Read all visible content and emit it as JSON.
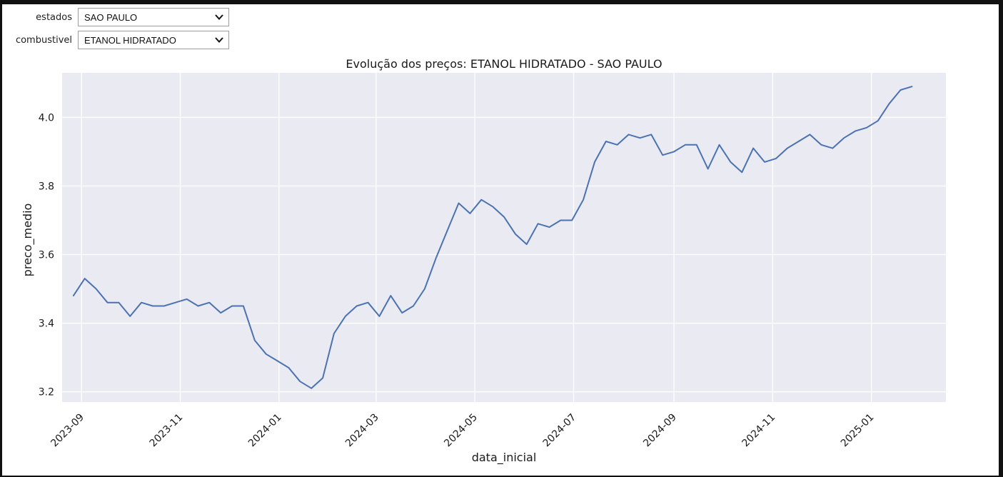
{
  "controls": {
    "estados": {
      "label": "estados",
      "value": "SAO PAULO"
    },
    "combustivel": {
      "label": "combustivel",
      "value": "ETANOL HIDRATADO"
    }
  },
  "colors": {
    "line": "#4c72b0",
    "plot_bg": "#eaeaf2",
    "grid": "#ffffff"
  },
  "chart_data": {
    "type": "line",
    "title": "Evolução dos preços: ETANOL HIDRATADO - SAO PAULO",
    "xlabel": "data_inicial",
    "ylabel": "preco_medio",
    "ylim": [
      3.17,
      4.13
    ],
    "xlim": [
      "2023-08-20",
      "2025-02-16"
    ],
    "grid": true,
    "x_ticks": [
      "2023-09-01",
      "2023-11-01",
      "2024-01-01",
      "2024-03-01",
      "2024-05-01",
      "2024-07-01",
      "2024-09-01",
      "2024-11-01",
      "2025-01-01"
    ],
    "x_tick_labels": [
      "2023-09",
      "2023-11",
      "2024-01",
      "2024-03",
      "2024-05",
      "2024-07",
      "2024-09",
      "2024-11",
      "2025-01"
    ],
    "y_ticks": [
      3.2,
      3.4,
      3.6,
      3.8,
      4.0
    ],
    "y_tick_labels": [
      "3.2",
      "3.4",
      "3.6",
      "3.8",
      "4.0"
    ],
    "x": [
      "2023-08-27",
      "2023-09-03",
      "2023-09-10",
      "2023-09-17",
      "2023-09-24",
      "2023-10-01",
      "2023-10-08",
      "2023-10-15",
      "2023-10-22",
      "2023-10-29",
      "2023-11-05",
      "2023-11-12",
      "2023-11-19",
      "2023-11-26",
      "2023-12-03",
      "2023-12-10",
      "2023-12-17",
      "2023-12-24",
      "2023-12-31",
      "2024-01-07",
      "2024-01-14",
      "2024-01-21",
      "2024-01-28",
      "2024-02-04",
      "2024-02-11",
      "2024-02-18",
      "2024-02-25",
      "2024-03-03",
      "2024-03-10",
      "2024-03-17",
      "2024-03-24",
      "2024-03-31",
      "2024-04-07",
      "2024-04-14",
      "2024-04-21",
      "2024-04-28",
      "2024-05-05",
      "2024-05-12",
      "2024-05-19",
      "2024-05-26",
      "2024-06-02",
      "2024-06-09",
      "2024-06-16",
      "2024-06-23",
      "2024-06-30",
      "2024-07-07",
      "2024-07-14",
      "2024-07-21",
      "2024-07-28",
      "2024-08-04",
      "2024-08-11",
      "2024-08-18",
      "2024-08-25",
      "2024-09-01",
      "2024-09-08",
      "2024-09-15",
      "2024-09-22",
      "2024-09-29",
      "2024-10-06",
      "2024-10-13",
      "2024-10-20",
      "2024-10-27",
      "2024-11-03",
      "2024-11-10",
      "2024-11-17",
      "2024-11-24",
      "2024-12-01",
      "2024-12-08",
      "2024-12-15",
      "2024-12-22",
      "2024-12-29",
      "2025-01-05",
      "2025-01-12",
      "2025-01-19",
      "2025-01-26"
    ],
    "series": [
      {
        "values": [
          3.48,
          3.53,
          3.5,
          3.46,
          3.46,
          3.42,
          3.46,
          3.45,
          3.45,
          3.46,
          3.47,
          3.45,
          3.46,
          3.43,
          3.45,
          3.45,
          3.35,
          3.31,
          3.29,
          3.27,
          3.23,
          3.21,
          3.24,
          3.37,
          3.42,
          3.45,
          3.46,
          3.42,
          3.48,
          3.43,
          3.45,
          3.5,
          3.59,
          3.67,
          3.75,
          3.72,
          3.76,
          3.74,
          3.71,
          3.66,
          3.63,
          3.69,
          3.68,
          3.7,
          3.7,
          3.76,
          3.87,
          3.93,
          3.92,
          3.95,
          3.94,
          3.95,
          3.89,
          3.9,
          3.92,
          3.92,
          3.85,
          3.92,
          3.87,
          3.84,
          3.91,
          3.87,
          3.88,
          3.91,
          3.93,
          3.95,
          3.92,
          3.91,
          3.94,
          3.96,
          3.97,
          3.99,
          4.04,
          4.08,
          4.09
        ]
      }
    ]
  }
}
